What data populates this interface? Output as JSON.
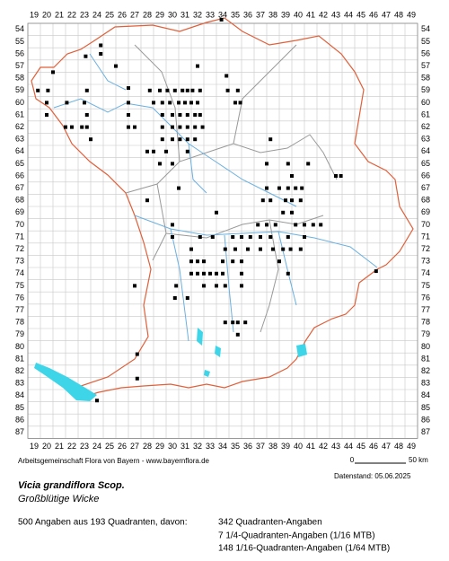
{
  "map": {
    "columns": [
      19,
      20,
      21,
      22,
      23,
      24,
      25,
      26,
      27,
      28,
      29,
      30,
      31,
      32,
      33,
      34,
      35,
      36,
      37,
      38,
      39,
      40,
      41,
      42,
      43,
      44,
      45,
      46,
      47,
      48,
      49
    ],
    "rows": [
      54,
      55,
      56,
      57,
      58,
      59,
      60,
      61,
      62,
      63,
      64,
      65,
      66,
      67,
      68,
      69,
      70,
      71,
      72,
      73,
      74,
      75,
      76,
      77,
      78,
      79,
      80,
      81,
      82,
      83,
      84,
      85,
      86,
      87
    ],
    "points": [
      [
        33.9,
        53.2
      ],
      [
        24.3,
        55.3
      ],
      [
        24.3,
        56.0
      ],
      [
        23.1,
        56.2
      ],
      [
        20.5,
        57.5
      ],
      [
        25.5,
        57.0
      ],
      [
        32.0,
        57.0
      ],
      [
        34.3,
        57.8
      ],
      [
        19.3,
        59.0
      ],
      [
        20.1,
        59.0
      ],
      [
        23.2,
        59.0
      ],
      [
        26.5,
        58.8
      ],
      [
        28.2,
        59.0
      ],
      [
        29.0,
        59.0
      ],
      [
        29.6,
        59.0
      ],
      [
        30.2,
        59.0
      ],
      [
        30.8,
        59.0
      ],
      [
        31.2,
        59.0
      ],
      [
        31.6,
        59.0
      ],
      [
        32.2,
        59.0
      ],
      [
        34.4,
        59.0
      ],
      [
        35.2,
        59.0
      ],
      [
        20.0,
        60.0
      ],
      [
        21.6,
        60.0
      ],
      [
        23.0,
        60.0
      ],
      [
        26.5,
        60.0
      ],
      [
        28.5,
        60.0
      ],
      [
        29.2,
        60.0
      ],
      [
        29.8,
        60.0
      ],
      [
        30.5,
        60.0
      ],
      [
        31.0,
        60.0
      ],
      [
        31.5,
        60.0
      ],
      [
        32.0,
        60.0
      ],
      [
        35.0,
        60.0
      ],
      [
        35.4,
        60.0
      ],
      [
        20.0,
        61.0
      ],
      [
        23.2,
        61.0
      ],
      [
        26.5,
        61.0
      ],
      [
        29.2,
        61.0
      ],
      [
        30.0,
        61.0
      ],
      [
        30.6,
        61.0
      ],
      [
        31.2,
        61.0
      ],
      [
        31.8,
        61.0
      ],
      [
        32.2,
        61.0
      ],
      [
        21.5,
        62.0
      ],
      [
        22.0,
        62.0
      ],
      [
        22.8,
        62.0
      ],
      [
        23.2,
        62.0
      ],
      [
        26.5,
        62.0
      ],
      [
        27.0,
        62.0
      ],
      [
        29.2,
        62.0
      ],
      [
        30.0,
        62.0
      ],
      [
        30.6,
        62.0
      ],
      [
        31.2,
        62.0
      ],
      [
        31.8,
        62.0
      ],
      [
        32.4,
        62.0
      ],
      [
        23.5,
        63.0
      ],
      [
        29.2,
        63.0
      ],
      [
        30.0,
        63.0
      ],
      [
        30.6,
        63.0
      ],
      [
        31.2,
        63.0
      ],
      [
        31.8,
        63.0
      ],
      [
        37.8,
        63.0
      ],
      [
        28.0,
        64.0
      ],
      [
        28.5,
        64.0
      ],
      [
        29.5,
        64.0
      ],
      [
        31.2,
        64.0
      ],
      [
        29.0,
        65.0
      ],
      [
        30.0,
        65.0
      ],
      [
        37.5,
        65.0
      ],
      [
        39.2,
        65.0
      ],
      [
        40.8,
        65.0
      ],
      [
        39.5,
        66.0
      ],
      [
        43.0,
        66.0
      ],
      [
        43.4,
        66.0
      ],
      [
        30.5,
        67.0
      ],
      [
        37.5,
        67.0
      ],
      [
        38.5,
        67.0
      ],
      [
        39.2,
        67.0
      ],
      [
        39.8,
        67.0
      ],
      [
        40.3,
        67.0
      ],
      [
        28.0,
        68.0
      ],
      [
        37.2,
        68.0
      ],
      [
        37.8,
        68.0
      ],
      [
        39.0,
        68.0
      ],
      [
        39.5,
        68.0
      ],
      [
        40.2,
        68.0
      ],
      [
        33.5,
        69.0
      ],
      [
        38.8,
        69.0
      ],
      [
        39.5,
        69.0
      ],
      [
        30.0,
        70.0
      ],
      [
        36.8,
        70.0
      ],
      [
        37.5,
        70.0
      ],
      [
        38.2,
        70.0
      ],
      [
        39.8,
        70.0
      ],
      [
        40.5,
        70.0
      ],
      [
        41.2,
        70.0
      ],
      [
        41.8,
        70.0
      ],
      [
        30.0,
        71.0
      ],
      [
        32.2,
        71.0
      ],
      [
        33.2,
        71.0
      ],
      [
        34.8,
        71.0
      ],
      [
        35.5,
        71.0
      ],
      [
        36.2,
        71.0
      ],
      [
        37.0,
        71.0
      ],
      [
        37.8,
        71.0
      ],
      [
        39.2,
        71.0
      ],
      [
        40.5,
        71.0
      ],
      [
        31.5,
        72.0
      ],
      [
        34.2,
        72.0
      ],
      [
        35.0,
        72.0
      ],
      [
        36.0,
        72.0
      ],
      [
        37.0,
        72.0
      ],
      [
        38.0,
        72.0
      ],
      [
        38.8,
        72.0
      ],
      [
        39.4,
        72.0
      ],
      [
        40.2,
        72.0
      ],
      [
        31.5,
        73.0
      ],
      [
        32.0,
        73.0
      ],
      [
        32.5,
        73.0
      ],
      [
        34.0,
        73.0
      ],
      [
        34.8,
        73.0
      ],
      [
        35.5,
        73.0
      ],
      [
        38.5,
        73.0
      ],
      [
        31.5,
        74.0
      ],
      [
        32.0,
        74.0
      ],
      [
        32.5,
        74.0
      ],
      [
        33.0,
        74.0
      ],
      [
        33.5,
        74.0
      ],
      [
        34.0,
        74.0
      ],
      [
        35.5,
        74.0
      ],
      [
        39.2,
        74.0
      ],
      [
        46.2,
        73.8
      ],
      [
        27.0,
        75.0
      ],
      [
        30.3,
        75.0
      ],
      [
        32.5,
        75.0
      ],
      [
        33.5,
        75.0
      ],
      [
        34.2,
        75.0
      ],
      [
        35.5,
        75.0
      ],
      [
        30.2,
        76.0
      ],
      [
        31.2,
        76.0
      ],
      [
        34.2,
        78.0
      ],
      [
        34.8,
        78.0
      ],
      [
        35.2,
        78.0
      ],
      [
        35.8,
        78.0
      ],
      [
        35.2,
        79.0
      ],
      [
        27.2,
        80.6
      ],
      [
        27.2,
        82.6
      ],
      [
        24.0,
        84.4
      ]
    ],
    "credit": "Arbeitsgemeinschaft Flora von Bayern - www.bayernflora.de",
    "scale_start": "0",
    "scale_end": "50 km",
    "date": "Datenstand: 05.06.2025",
    "species": "Vicia grandiflora Scop.",
    "common_name": "Großblütige Wicke",
    "summary": "500 Angaben aus 193 Quadranten, davon:",
    "breakdown": [
      "342 Quadranten-Angaben",
      "7 1/4-Quadranten-Angaben (1/16 MTB)",
      "148 1/16-Quadranten-Angaben (1/64 MTB)"
    ]
  }
}
